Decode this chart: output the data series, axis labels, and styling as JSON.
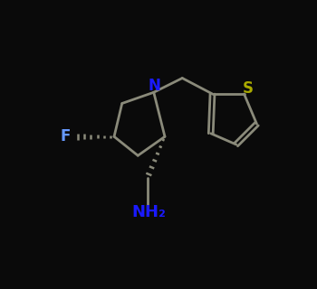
{
  "bg_color": "#0a0a0a",
  "bond_color": "#8a8a7a",
  "N_color": "#1a1aff",
  "F_color": "#6699ff",
  "S_color": "#aaaa00",
  "NH2_color": "#1a1aff",
  "lw": 2.0,
  "figsize": [
    3.5,
    3.2
  ],
  "dpi": 100,
  "xlim": [
    0,
    10
  ],
  "ylim": [
    0,
    9
  ],
  "N_label": "N",
  "F_label": "F",
  "S_label": "S",
  "NH2_label": "NH₂"
}
